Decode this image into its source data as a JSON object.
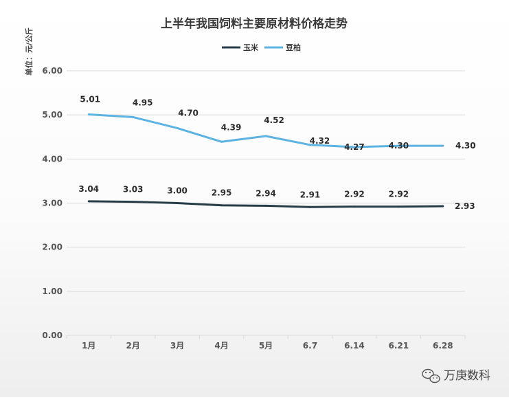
{
  "chart_data": {
    "type": "line",
    "title": "上半年我国饲料主要原材料价格走势",
    "ylabel": "单位：元/公斤",
    "xlabel": "",
    "categories": [
      "1月",
      "2月",
      "3月",
      "4月",
      "5月",
      "6.7",
      "6.14",
      "6.21",
      "6.28"
    ],
    "ylim": [
      0,
      6
    ],
    "yticks": [
      "0.00",
      "1.00",
      "2.00",
      "3.00",
      "4.00",
      "5.00",
      "6.00"
    ],
    "grid": true,
    "legend_position": "top-center",
    "series": [
      {
        "name": "玉米",
        "color": "#263d47",
        "values": [
          3.04,
          3.03,
          3.0,
          2.95,
          2.94,
          2.91,
          2.92,
          2.92,
          2.93
        ],
        "labels": [
          "3.04",
          "3.03",
          "3.00",
          "2.95",
          "2.94",
          "2.91",
          "2.92",
          "2.92",
          "2.93"
        ]
      },
      {
        "name": "豆柏",
        "color": "#5cb3e2",
        "values": [
          5.01,
          4.95,
          4.7,
          4.39,
          4.52,
          4.32,
          4.27,
          4.3,
          4.3
        ],
        "labels": [
          "5.01",
          "4.95",
          "4.70",
          "4.39",
          "4.52",
          "4.32",
          "4.27",
          "4.30",
          "4.30"
        ]
      }
    ]
  },
  "watermark": {
    "text": "万庚数科",
    "icon": "wechat-icon"
  }
}
